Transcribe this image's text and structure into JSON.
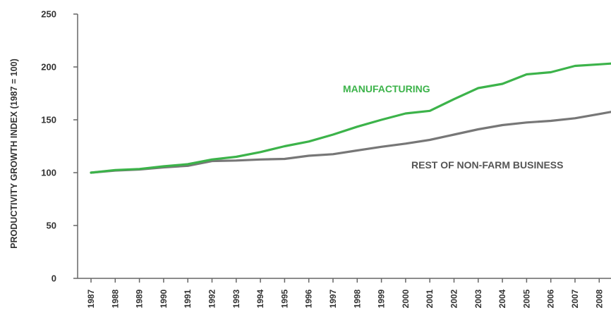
{
  "chart_data": {
    "type": "line",
    "title": "",
    "xlabel": "",
    "ylabel": "PRODUCTIVITY GROWTH INDEX (1987 = 100)",
    "ylim": [
      0,
      250
    ],
    "yticks": [
      0,
      50,
      100,
      150,
      200,
      250
    ],
    "grid": false,
    "legend": "inline labels",
    "x": [
      "1987",
      "1988",
      "1989",
      "1990",
      "1991",
      "1992",
      "1993",
      "1994",
      "1995",
      "1996",
      "1997",
      "1998",
      "1999",
      "2000",
      "2001",
      "2002",
      "2003",
      "2004",
      "2005",
      "2006",
      "2007",
      "2008"
    ],
    "series": [
      {
        "name": "MANUFACTURING",
        "color": "#3cb34a",
        "values": [
          100,
          102.5,
          103.5,
          106,
          108,
          112.5,
          115,
          119.5,
          125,
          129.5,
          136,
          143.5,
          150,
          156,
          158.5,
          169.5,
          180,
          184,
          193,
          195,
          201,
          202.5
        ]
      },
      {
        "name": "REST OF NON-FARM BUSINESS",
        "color": "#777777",
        "values": [
          100,
          102,
          103,
          105,
          106.5,
          111,
          111.5,
          112.5,
          113,
          116,
          117.5,
          121,
          124.5,
          127.5,
          131,
          136,
          141,
          145,
          147.5,
          149,
          151.5,
          155.5
        ]
      }
    ]
  }
}
